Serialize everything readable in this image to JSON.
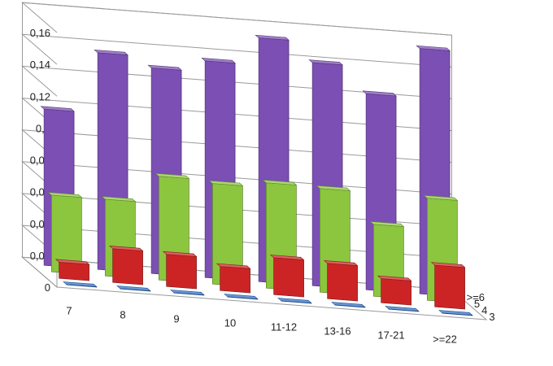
{
  "chart_data": {
    "type": "bar",
    "subtype": "3d-column",
    "categories": [
      "7",
      "8",
      "9",
      "10",
      "11-12",
      "13-16",
      "17-21",
      ">=22"
    ],
    "depth_labels": [
      "3",
      "4",
      "5",
      ">=6"
    ],
    "y_tick_labels": [
      "0",
      "0,02",
      "0,04",
      "0,06",
      "0,08",
      "0,1",
      "0,12",
      "0,14",
      "0,16"
    ],
    "ylim": [
      0,
      0.16
    ],
    "grid": true,
    "legend": "none",
    "series": [
      {
        "name": "3",
        "color": "#2e6fc7",
        "values": [
          0.001,
          0.001,
          0.001,
          0.001,
          0.001,
          0.001,
          0.001,
          0.001
        ]
      },
      {
        "name": "4",
        "color": "#cc2424",
        "values": [
          0.011,
          0.022,
          0.021,
          0.016,
          0.024,
          0.023,
          0.016,
          0.027
        ]
      },
      {
        "name": "5",
        "color": "#8cc63f",
        "values": [
          0.049,
          0.049,
          0.066,
          0.064,
          0.067,
          0.066,
          0.046,
          0.065
        ]
      },
      {
        "name": ">=6",
        "color": "#7b4fb3",
        "values": [
          0.099,
          0.137,
          0.13,
          0.137,
          0.154,
          0.141,
          0.124,
          0.155
        ]
      }
    ]
  }
}
